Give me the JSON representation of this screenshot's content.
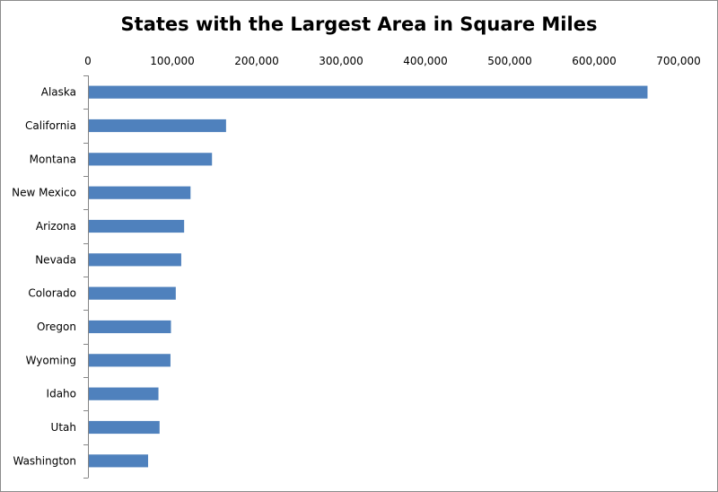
{
  "chart_data": {
    "type": "bar",
    "orientation": "horizontal",
    "title": "States with the Largest Area in Square Miles",
    "xlabel": "",
    "ylabel": "",
    "xlim": [
      0,
      700000
    ],
    "x_ticks": [
      0,
      100000,
      200000,
      300000,
      400000,
      500000,
      600000,
      700000
    ],
    "x_tick_labels": [
      "0",
      "100,000",
      "200,000",
      "300,000",
      "400,000",
      "500,000",
      "600,000",
      "700,000"
    ],
    "x_axis_position": "top",
    "grid": false,
    "legend": "none",
    "bar_color": "#4f81bd",
    "categories": [
      "Alaska",
      "California",
      "Montana",
      "New Mexico",
      "Arizona",
      "Nevada",
      "Colorado",
      "Oregon",
      "Wyoming",
      "Idaho",
      "Utah",
      "Washington"
    ],
    "values": [
      663268,
      163696,
      147040,
      121590,
      113990,
      110572,
      104094,
      98379,
      97813,
      83569,
      84897,
      71298
    ]
  }
}
